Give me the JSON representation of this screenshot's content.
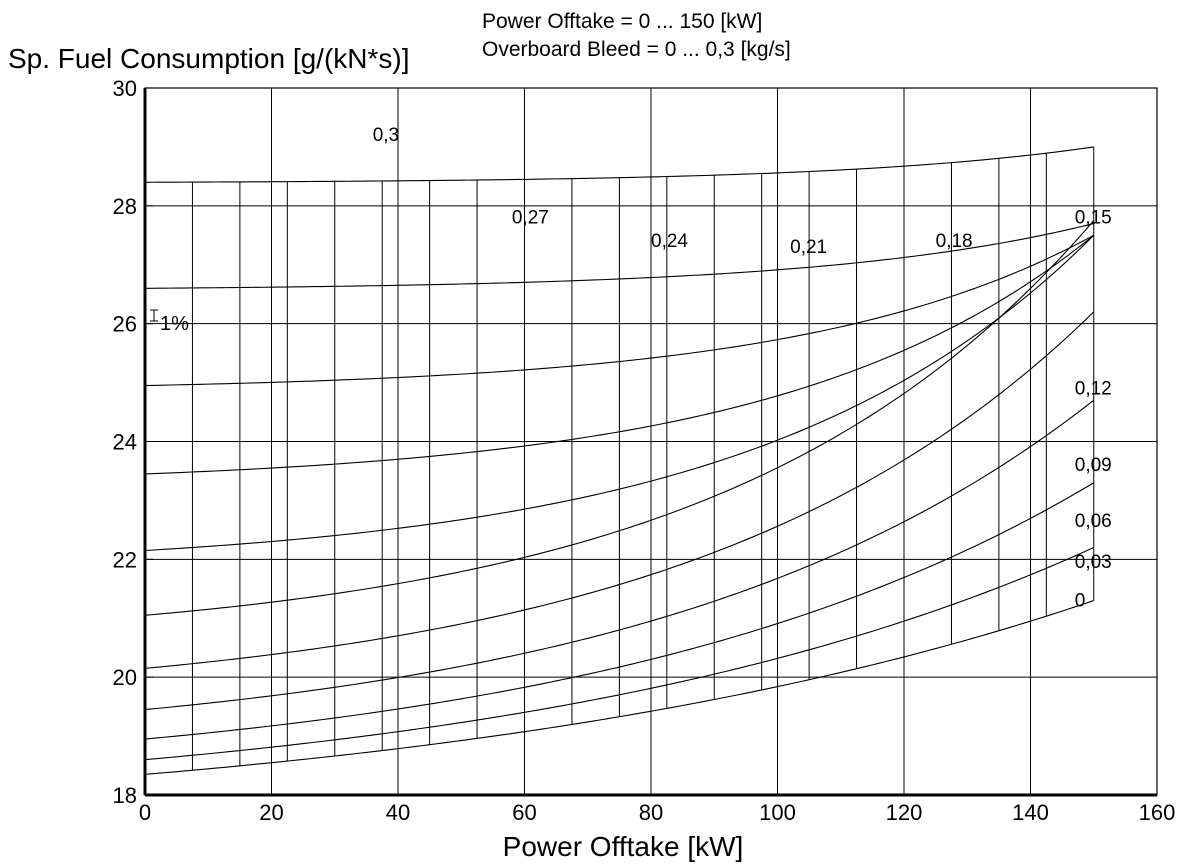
{
  "chart_data": {
    "type": "line",
    "title": "",
    "header_lines": [
      "Power Offtake = 0 ... 150 [kW]",
      "Overboard Bleed = 0 ... 0,3 [kg/s]"
    ],
    "xlabel": "Power Offtake [kW]",
    "ylabel": "Sp. Fuel Consumption [g/(kN*s)]",
    "xlim": [
      0,
      160
    ],
    "ylim": [
      18,
      30
    ],
    "x_ticks": [
      "0",
      "20",
      "40",
      "60",
      "80",
      "100",
      "120",
      "140",
      "160"
    ],
    "y_ticks": [
      "18",
      "20",
      "22",
      "24",
      "26",
      "28",
      "30"
    ],
    "grid": true,
    "scale_marker": "1%",
    "x_sample_points": [
      0,
      7.5,
      15,
      22.5,
      30,
      37.5,
      45,
      52.5,
      60,
      67.5,
      75,
      82.5,
      90,
      97.5,
      105,
      112.5,
      120,
      127.5,
      135,
      142.5,
      150
    ],
    "bleed_curves": [
      {
        "bleed": 0,
        "x_start": 0,
        "y_start": 18.35,
        "y_end": 21.3
      },
      {
        "bleed": 0.03,
        "x_start": 0,
        "y_start": 18.6,
        "y_end": 22.2
      },
      {
        "bleed": 0.06,
        "x_start": 0,
        "y_start": 18.95,
        "y_end": 23.3
      },
      {
        "bleed": 0.09,
        "x_start": 0,
        "y_start": 19.45,
        "y_end": 24.7
      },
      {
        "bleed": 0.12,
        "x_start": 0,
        "y_start": 20.15,
        "y_end": 26.2
      },
      {
        "bleed": 0.15,
        "x_start": 0,
        "y_start": 21.05,
        "y_end": 27.75
      },
      {
        "bleed": 0.18,
        "x_start": 0,
        "y_start": 22.15,
        "y_end": 27.5
      },
      {
        "bleed": 0.21,
        "x_start": 0,
        "y_start": 23.45,
        "y_end": 27.5
      },
      {
        "bleed": 0.24,
        "x_start": 0,
        "y_start": 24.95,
        "y_end": 27.5
      },
      {
        "bleed": 0.27,
        "x_start": 0,
        "y_start": 26.6,
        "y_end": 27.7
      },
      {
        "bleed": 0.3,
        "x_start": 0,
        "y_start": 28.4,
        "y_end": 29.0
      }
    ],
    "bleed_labels": [
      {
        "text": "0,3",
        "x": 36,
        "y": 29.1
      },
      {
        "text": "0,27",
        "x": 58,
        "y": 27.7
      },
      {
        "text": "0,24",
        "x": 80,
        "y": 27.3
      },
      {
        "text": "0,21",
        "x": 102,
        "y": 27.2
      },
      {
        "text": "0,18",
        "x": 125,
        "y": 27.3
      },
      {
        "text": "0,15",
        "x": 147,
        "y": 27.7
      },
      {
        "text": "0,12",
        "x": 147,
        "y": 24.8
      },
      {
        "text": "0,09",
        "x": 147,
        "y": 23.5
      },
      {
        "text": "0,06",
        "x": 147,
        "y": 22.55
      },
      {
        "text": "0,03",
        "x": 147,
        "y": 21.85
      },
      {
        "text": "0",
        "x": 147,
        "y": 21.2
      }
    ]
  }
}
